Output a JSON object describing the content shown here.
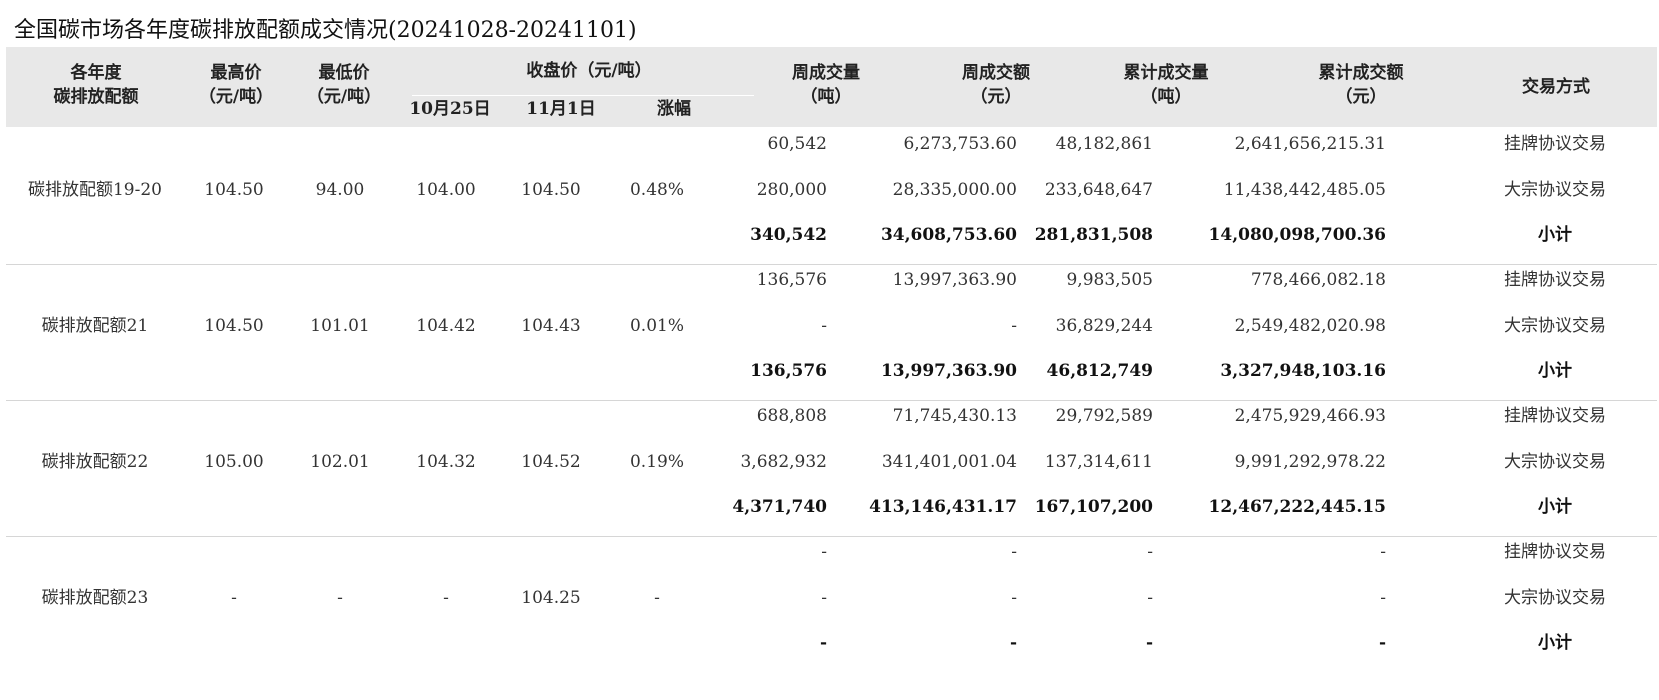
{
  "title": "全国碳市场各年度碳排放配额成交情况(20241028-20241101)",
  "headers": {
    "allowance": [
      "各年度",
      "碳排放配额"
    ],
    "high": [
      "最高价",
      "（元/吨）"
    ],
    "low": [
      "最低价",
      "（元/吨）"
    ],
    "close": "收盘价（元/吨）",
    "close_prev": "10月25日",
    "close_curr": "11月1日",
    "change": "涨幅",
    "week_vol": [
      "周成交量",
      "（吨）"
    ],
    "week_amt": [
      "周成交额",
      "（元）"
    ],
    "cum_vol": [
      "累计成交量",
      "（吨）"
    ],
    "cum_amt": [
      "累计成交额",
      "（元）"
    ],
    "method": "交易方式"
  },
  "groups": [
    {
      "name": "碳排放配额19-20",
      "high": "104.50",
      "low": "94.00",
      "close_prev": "104.00",
      "close_curr": "104.50",
      "change": "0.48%",
      "rows": [
        {
          "week_vol": "60,542",
          "week_amt": "6,273,753.60",
          "cum_vol": "48,182,861",
          "cum_amt": "2,641,656,215.31",
          "method": "挂牌协议交易"
        },
        {
          "week_vol": "280,000",
          "week_amt": "28,335,000.00",
          "cum_vol": "233,648,647",
          "cum_amt": "11,438,442,485.05",
          "method": "大宗协议交易"
        },
        {
          "week_vol": "340,542",
          "week_amt": "34,608,753.60",
          "cum_vol": "281,831,508",
          "cum_amt": "14,080,098,700.36",
          "method": "小计"
        }
      ]
    },
    {
      "name": "碳排放配额21",
      "high": "104.50",
      "low": "101.01",
      "close_prev": "104.42",
      "close_curr": "104.43",
      "change": "0.01%",
      "rows": [
        {
          "week_vol": "136,576",
          "week_amt": "13,997,363.90",
          "cum_vol": "9,983,505",
          "cum_amt": "778,466,082.18",
          "method": "挂牌协议交易"
        },
        {
          "week_vol": "-",
          "week_amt": "-",
          "cum_vol": "36,829,244",
          "cum_amt": "2,549,482,020.98",
          "method": "大宗协议交易"
        },
        {
          "week_vol": "136,576",
          "week_amt": "13,997,363.90",
          "cum_vol": "46,812,749",
          "cum_amt": "3,327,948,103.16",
          "method": "小计"
        }
      ]
    },
    {
      "name": "碳排放配额22",
      "high": "105.00",
      "low": "102.01",
      "close_prev": "104.32",
      "close_curr": "104.52",
      "change": "0.19%",
      "rows": [
        {
          "week_vol": "688,808",
          "week_amt": "71,745,430.13",
          "cum_vol": "29,792,589",
          "cum_amt": "2,475,929,466.93",
          "method": "挂牌协议交易"
        },
        {
          "week_vol": "3,682,932",
          "week_amt": "341,401,001.04",
          "cum_vol": "137,314,611",
          "cum_amt": "9,991,292,978.22",
          "method": "大宗协议交易"
        },
        {
          "week_vol": "4,371,740",
          "week_amt": "413,146,431.17",
          "cum_vol": "167,107,200",
          "cum_amt": "12,467,222,445.15",
          "method": "小计"
        }
      ]
    },
    {
      "name": "碳排放配额23",
      "high": "-",
      "low": "-",
      "close_prev": "-",
      "close_curr": "104.25",
      "change": "-",
      "rows": [
        {
          "week_vol": "-",
          "week_amt": "-",
          "cum_vol": "-",
          "cum_amt": "-",
          "method": "挂牌协议交易"
        },
        {
          "week_vol": "-",
          "week_amt": "-",
          "cum_vol": "-",
          "cum_amt": "-",
          "method": "大宗协议交易"
        },
        {
          "week_vol": "-",
          "week_amt": "-",
          "cum_vol": "-",
          "cum_amt": "-",
          "method": "小计"
        }
      ]
    }
  ]
}
